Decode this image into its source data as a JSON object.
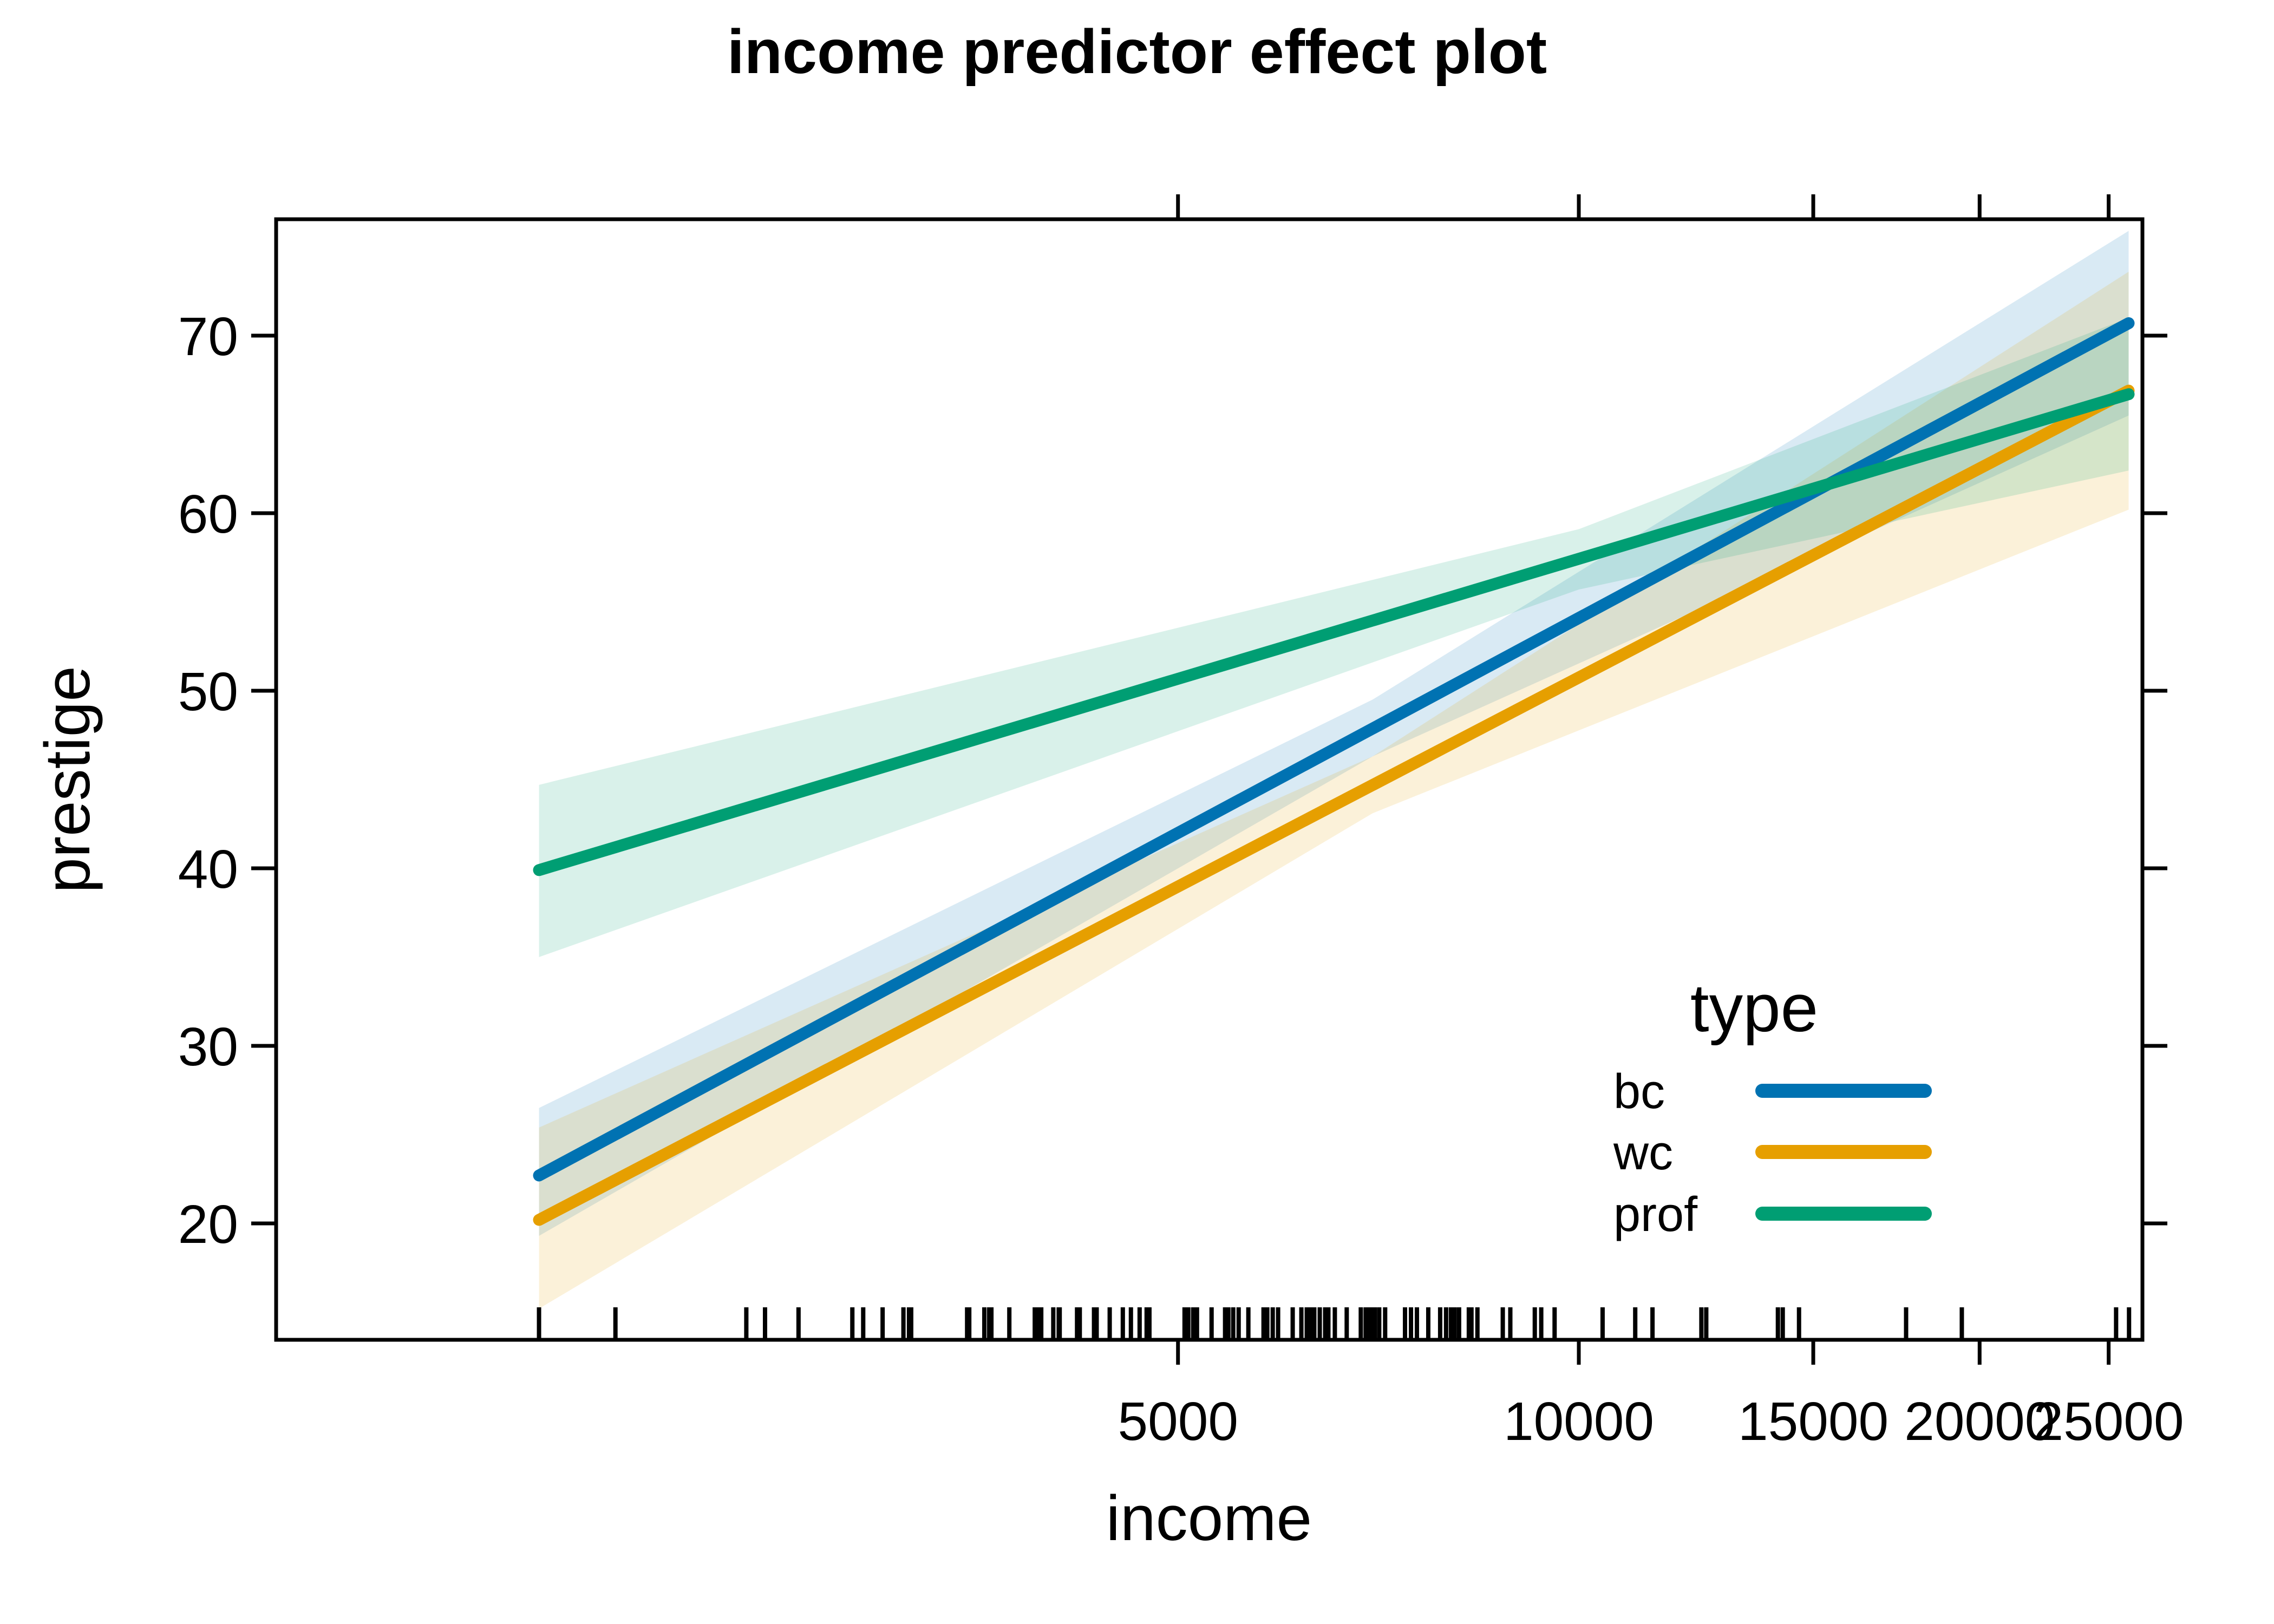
{
  "title": "income predictor effect plot",
  "x_axis": {
    "label": "income",
    "tick_labels": [
      "5000",
      "10000",
      "15000",
      "20000",
      "25000"
    ]
  },
  "y_axis": {
    "label": "prestige",
    "tick_labels": [
      "20",
      "30",
      "40",
      "50",
      "60",
      "70"
    ]
  },
  "legend": {
    "title": "type",
    "entries": [
      {
        "label": "bc",
        "color": "#0072B2"
      },
      {
        "label": "wc",
        "color": "#E69F00"
      },
      {
        "label": "prof",
        "color": "#009E73"
      }
    ]
  },
  "colors": {
    "bc": "#0072B2",
    "wc": "#E69F00",
    "prof": "#009E73",
    "axis": "#000000"
  },
  "chart_data": {
    "type": "line",
    "title": "income predictor effect plot",
    "xlabel": "income",
    "ylabel": "prestige",
    "x_scale": "log",
    "xlim": [
      1050,
      26500
    ],
    "ylim": [
      13.4,
      76.6
    ],
    "x_ticks": [
      5000,
      10000,
      15000,
      20000,
      25000
    ],
    "y_ticks": [
      20,
      30,
      40,
      50,
      60,
      70
    ],
    "grid": false,
    "legend_position": "inside-bottom-right",
    "series": [
      {
        "name": "bc",
        "color": "#0072B2",
        "x": [
          1656,
          25879
        ],
        "y": [
          22.7,
          70.7
        ],
        "band": {
          "x": [
            1656,
            7000,
            25879
          ],
          "lower": [
            19.3,
            46.3,
            65.5
          ],
          "upper": [
            26.5,
            49.5,
            75.9
          ]
        }
      },
      {
        "name": "wc",
        "color": "#E69F00",
        "x": [
          1656,
          25879
        ],
        "y": [
          20.2,
          66.9
        ],
        "band": {
          "x": [
            1656,
            7000,
            25879
          ],
          "lower": [
            15.2,
            43.1,
            60.2
          ],
          "upper": [
            25.4,
            46.3,
            73.6
          ]
        }
      },
      {
        "name": "prof",
        "color": "#009E73",
        "x": [
          1656,
          25879
        ],
        "y": [
          39.9,
          66.7
        ],
        "band": {
          "x": [
            1656,
            10000,
            25879
          ],
          "lower": [
            35.0,
            55.7,
            62.4
          ],
          "upper": [
            44.7,
            59.1,
            71.0
          ]
        }
      }
    ],
    "band_opacity": 0.15,
    "rug_income_values": [
      1656,
      1890,
      2370,
      2448,
      2594,
      2847,
      2901,
      3000,
      3110,
      3140,
      3152,
      3472,
      3485,
      3577,
      3607,
      3621,
      3735,
      3903,
      3925,
      3947,
      4030,
      4068,
      4075,
      4199,
      4219,
      4324,
      4344,
      4443,
      4545,
      4609,
      4679,
      4736,
      4759,
      5057,
      5090,
      5133,
      5167,
      5299,
      5424,
      5455,
      5501,
      5553,
      5647,
      5797,
      5835,
      5890,
      5945,
      6097,
      6189,
      6247,
      6288,
      6329,
      6389,
      6449,
      6485,
      6558,
      6694,
      6859,
      6917,
      6950,
      6989,
      7028,
      7081,
      7154,
      7404,
      7481,
      7558,
      7708,
      7868,
      7949,
      8016,
      8069,
      8130,
      8268,
      8306,
      8392,
      8768,
      8883,
      9267,
      9371,
      9590,
      10420,
      11025,
      11359,
      12361,
      12466,
      14110,
      14229,
      14635,
      17612,
      19394,
      25324,
      25897
    ]
  }
}
